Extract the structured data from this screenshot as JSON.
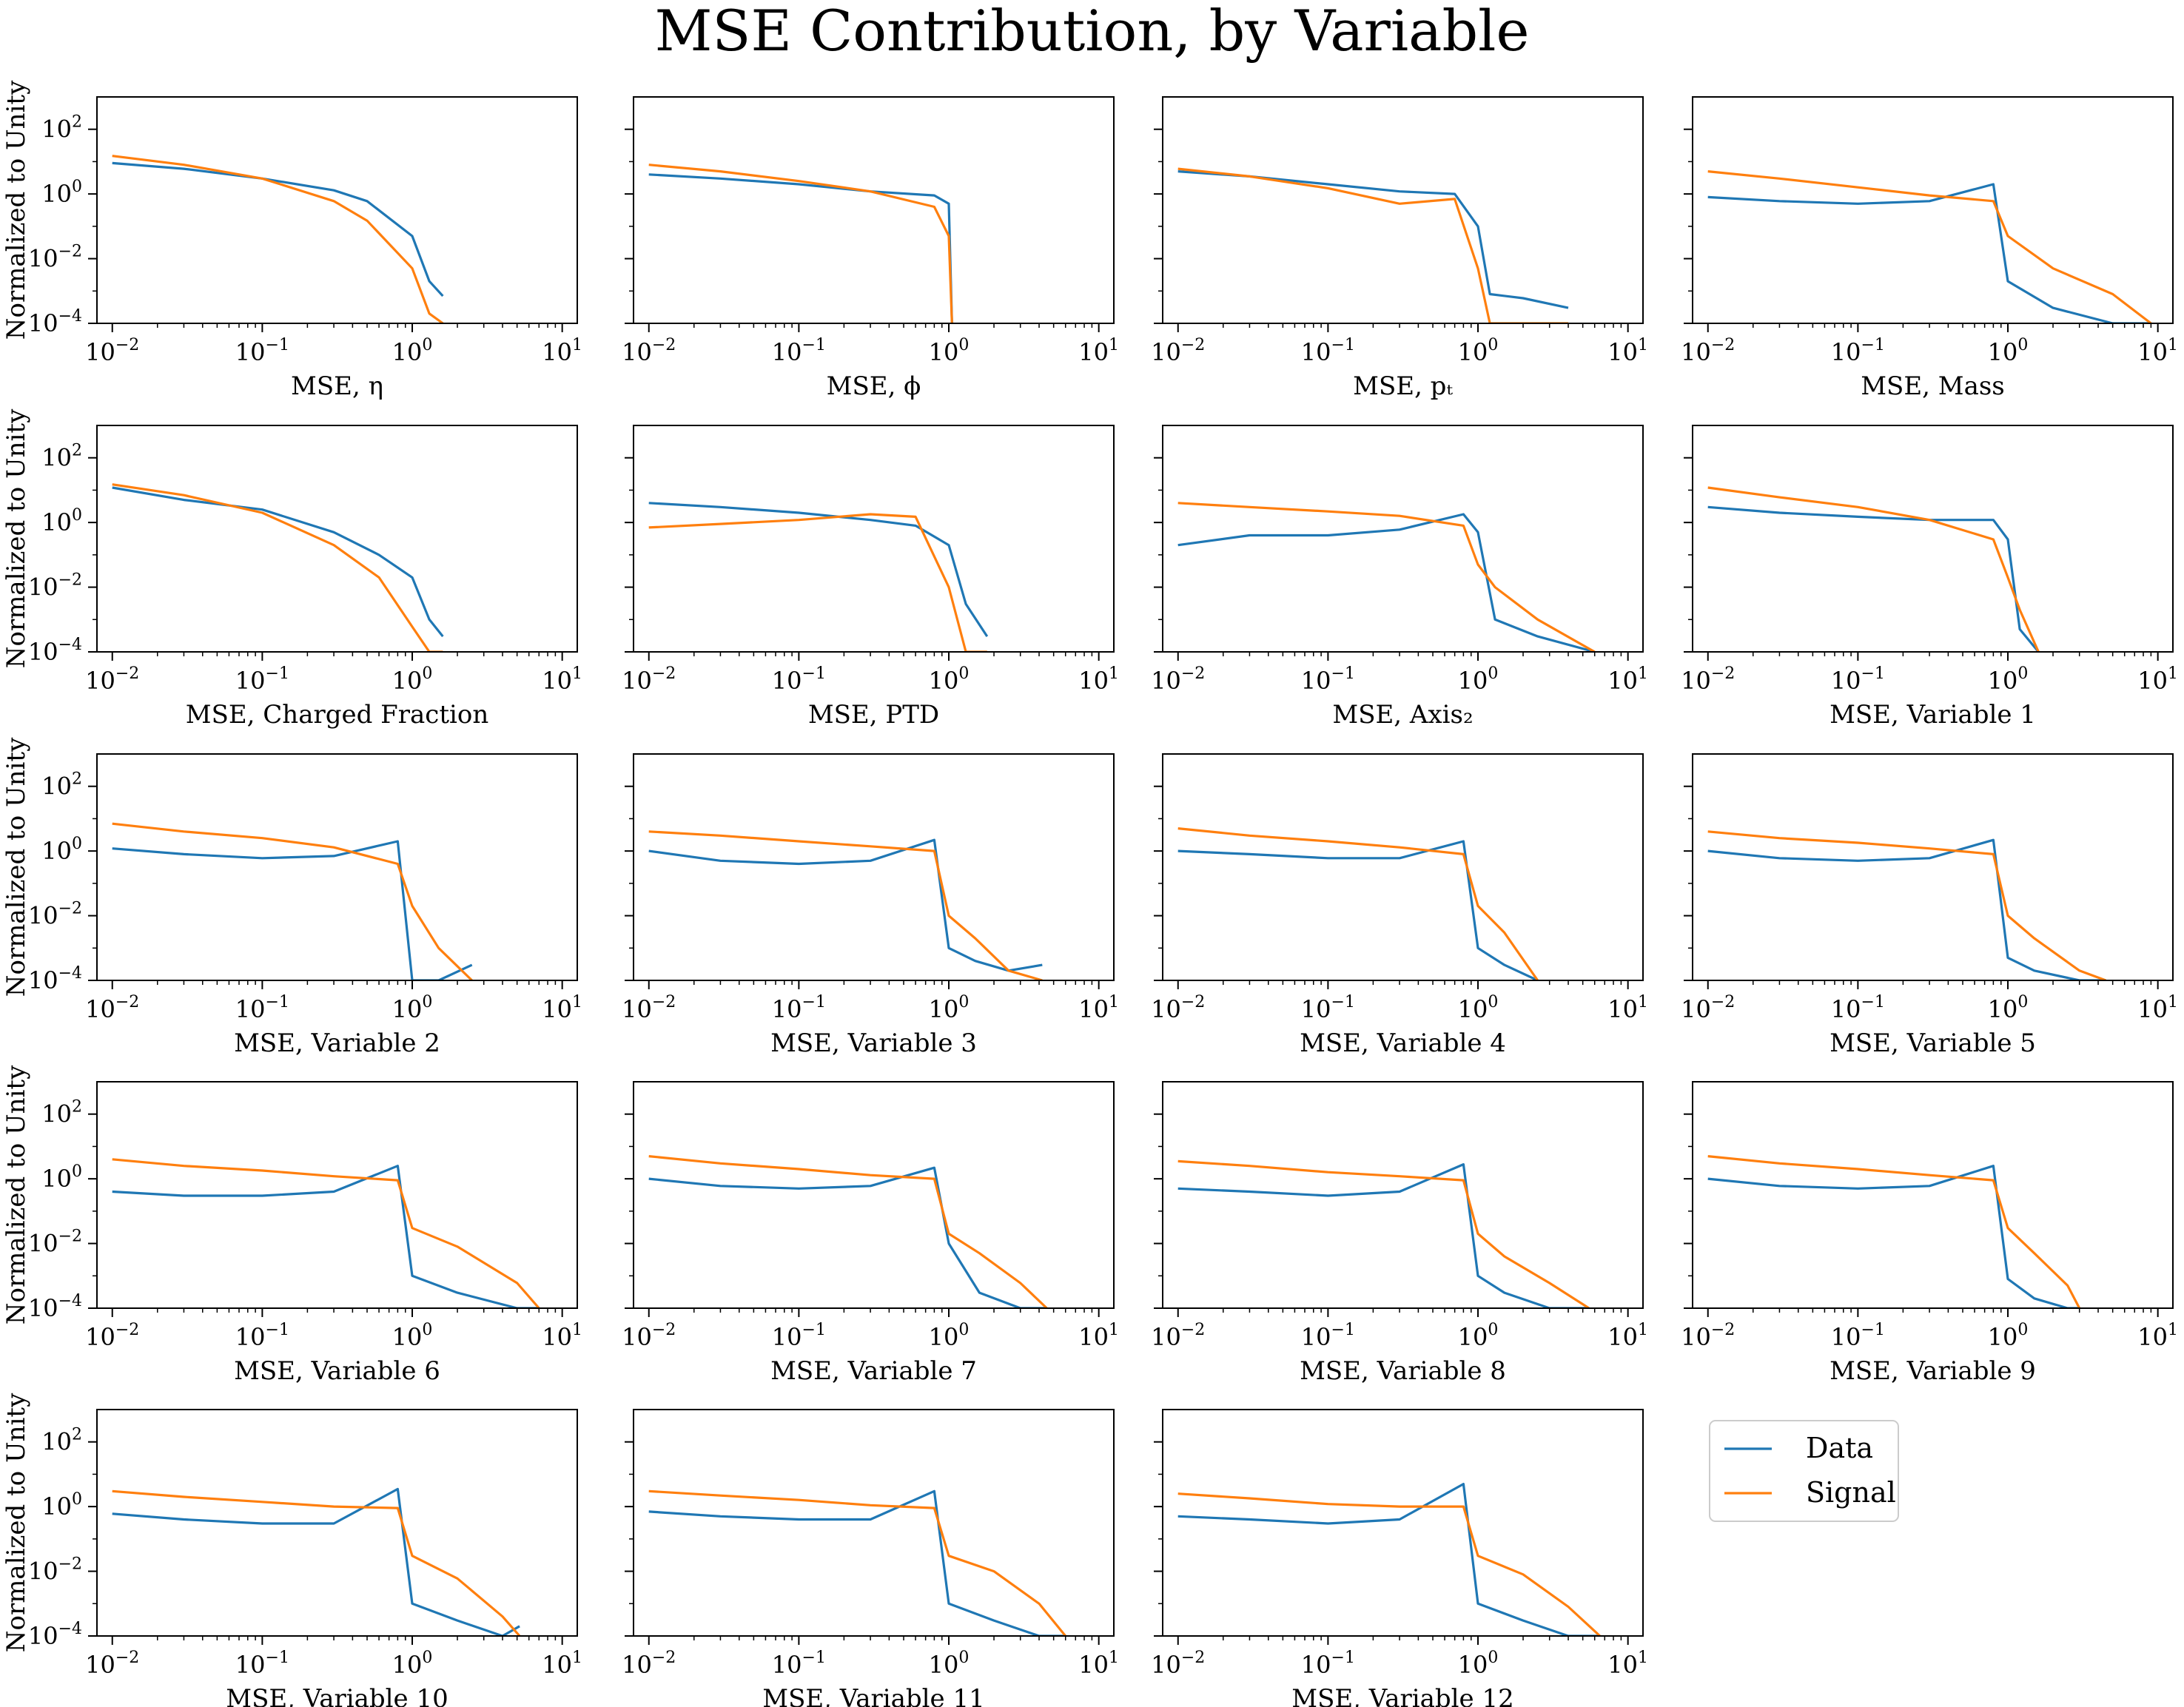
{
  "title": "MSE Contribution, by Variable",
  "legend": {
    "placement": "bottom-right",
    "entries": [
      {
        "label": "Data",
        "color": "#1f77b4"
      },
      {
        "label": "Signal",
        "color": "#ff7f0e"
      }
    ]
  },
  "chart_data": [
    {
      "type": "line",
      "xlabel": "MSE, η",
      "ylabel": "Normalized to Unity",
      "xscale": "log",
      "yscale": "log",
      "xlim": [
        0.0079,
        12.6
      ],
      "ylim": [
        0.0001,
        1000
      ],
      "grid": false,
      "x": [
        0.01,
        0.03,
        0.1,
        0.3,
        0.5,
        1.0,
        1.3,
        1.6
      ],
      "series": [
        {
          "name": "Data",
          "color": "#1f77b4",
          "values": [
            9,
            6,
            3,
            1.3,
            0.6,
            0.05,
            0.002,
            0.0007
          ]
        },
        {
          "name": "Signal",
          "color": "#ff7f0e",
          "values": [
            15,
            8,
            3,
            0.6,
            0.15,
            0.005,
            0.0002,
            0.0001
          ]
        }
      ]
    },
    {
      "type": "line",
      "xlabel": "MSE, ϕ",
      "ylabel": "",
      "xscale": "log",
      "yscale": "log",
      "xlim": [
        0.0079,
        12.6
      ],
      "ylim": [
        0.0001,
        1000
      ],
      "grid": false,
      "x": [
        0.01,
        0.03,
        0.1,
        0.3,
        0.8,
        1.0,
        1.05
      ],
      "series": [
        {
          "name": "Data",
          "color": "#1f77b4",
          "values": [
            4,
            3,
            2,
            1.2,
            0.9,
            0.5,
            0.0001
          ]
        },
        {
          "name": "Signal",
          "color": "#ff7f0e",
          "values": [
            8,
            5,
            2.5,
            1.2,
            0.4,
            0.05,
            0.0001
          ]
        }
      ]
    },
    {
      "type": "line",
      "xlabel": "MSE, pₜ",
      "ylabel": "",
      "xscale": "log",
      "yscale": "log",
      "xlim": [
        0.0079,
        12.6
      ],
      "ylim": [
        0.0001,
        1000
      ],
      "grid": false,
      "x": [
        0.01,
        0.03,
        0.1,
        0.3,
        0.7,
        1.0,
        1.2,
        2.0,
        4.0
      ],
      "series": [
        {
          "name": "Data",
          "color": "#1f77b4",
          "values": [
            5,
            3.5,
            2,
            1.2,
            1.0,
            0.1,
            0.0008,
            0.0006,
            0.0003
          ]
        },
        {
          "name": "Signal",
          "color": "#ff7f0e",
          "values": [
            6,
            3.5,
            1.5,
            0.5,
            0.7,
            0.005,
            0.0001,
            0.0001,
            0.0001
          ]
        }
      ]
    },
    {
      "type": "line",
      "xlabel": "MSE, Mass",
      "ylabel": "",
      "xscale": "log",
      "yscale": "log",
      "xlim": [
        0.0079,
        12.6
      ],
      "ylim": [
        0.0001,
        1000
      ],
      "grid": false,
      "x": [
        0.01,
        0.03,
        0.1,
        0.3,
        0.8,
        1.0,
        2.0,
        5.0,
        9.0
      ],
      "series": [
        {
          "name": "Data",
          "color": "#1f77b4",
          "values": [
            0.8,
            0.6,
            0.5,
            0.6,
            2,
            0.002,
            0.0003,
            0.0001,
            0.0001
          ]
        },
        {
          "name": "Signal",
          "color": "#ff7f0e",
          "values": [
            5,
            3,
            1.6,
            0.9,
            0.6,
            0.05,
            0.005,
            0.0008,
            0.0001
          ]
        }
      ]
    },
    {
      "type": "line",
      "xlabel": "MSE, Charged Fraction",
      "ylabel": "Normalized to Unity",
      "xscale": "log",
      "yscale": "log",
      "xlim": [
        0.0079,
        12.6
      ],
      "ylim": [
        0.0001,
        1000
      ],
      "grid": false,
      "x": [
        0.01,
        0.03,
        0.1,
        0.3,
        0.6,
        1.0,
        1.3,
        1.6
      ],
      "series": [
        {
          "name": "Data",
          "color": "#1f77b4",
          "values": [
            12,
            5,
            2.5,
            0.5,
            0.1,
            0.02,
            0.001,
            0.0003
          ]
        },
        {
          "name": "Signal",
          "color": "#ff7f0e",
          "values": [
            15,
            7,
            2,
            0.2,
            0.02,
            0.0006,
            0.0001,
            0.0001
          ]
        }
      ]
    },
    {
      "type": "line",
      "xlabel": "MSE, PTD",
      "ylabel": "",
      "xscale": "log",
      "yscale": "log",
      "xlim": [
        0.0079,
        12.6
      ],
      "ylim": [
        0.0001,
        1000
      ],
      "grid": false,
      "x": [
        0.01,
        0.03,
        0.1,
        0.3,
        0.6,
        1.0,
        1.3,
        1.8
      ],
      "series": [
        {
          "name": "Data",
          "color": "#1f77b4",
          "values": [
            4,
            3,
            2,
            1.2,
            0.8,
            0.2,
            0.003,
            0.0003
          ]
        },
        {
          "name": "Signal",
          "color": "#ff7f0e",
          "values": [
            0.7,
            0.9,
            1.2,
            1.8,
            1.5,
            0.01,
            0.0001,
            0.0001
          ]
        }
      ]
    },
    {
      "type": "line",
      "xlabel": "MSE, Axis₂",
      "ylabel": "",
      "xscale": "log",
      "yscale": "log",
      "xlim": [
        0.0079,
        12.6
      ],
      "ylim": [
        0.0001,
        1000
      ],
      "grid": false,
      "x": [
        0.01,
        0.03,
        0.1,
        0.3,
        0.8,
        1.0,
        1.3,
        2.5,
        6.0
      ],
      "series": [
        {
          "name": "Data",
          "color": "#1f77b4",
          "values": [
            0.2,
            0.4,
            0.4,
            0.6,
            1.8,
            0.5,
            0.001,
            0.0003,
            0.0001
          ]
        },
        {
          "name": "Signal",
          "color": "#ff7f0e",
          "values": [
            4,
            3,
            2.2,
            1.6,
            0.8,
            0.05,
            0.01,
            0.001,
            0.0001
          ]
        }
      ]
    },
    {
      "type": "line",
      "xlabel": "MSE, Variable 1",
      "ylabel": "",
      "xscale": "log",
      "yscale": "log",
      "xlim": [
        0.0079,
        12.6
      ],
      "ylim": [
        0.0001,
        1000
      ],
      "grid": false,
      "x": [
        0.01,
        0.03,
        0.1,
        0.3,
        0.8,
        1.0,
        1.2,
        1.6
      ],
      "series": [
        {
          "name": "Data",
          "color": "#1f77b4",
          "values": [
            3,
            2,
            1.5,
            1.2,
            1.2,
            0.3,
            0.0005,
            0.0001
          ]
        },
        {
          "name": "Signal",
          "color": "#ff7f0e",
          "values": [
            12,
            6,
            3,
            1.2,
            0.3,
            0.02,
            0.002,
            0.0001
          ]
        }
      ]
    },
    {
      "type": "line",
      "xlabel": "MSE, Variable 2",
      "ylabel": "Normalized to Unity",
      "xscale": "log",
      "yscale": "log",
      "xlim": [
        0.0079,
        12.6
      ],
      "ylim": [
        0.0001,
        1000
      ],
      "grid": false,
      "x": [
        0.01,
        0.03,
        0.1,
        0.3,
        0.8,
        1.0,
        1.5,
        2.5
      ],
      "series": [
        {
          "name": "Data",
          "color": "#1f77b4",
          "values": [
            1.2,
            0.8,
            0.6,
            0.7,
            2,
            0.0001,
            0.0001,
            0.0003
          ]
        },
        {
          "name": "Signal",
          "color": "#ff7f0e",
          "values": [
            7,
            4,
            2.5,
            1.3,
            0.4,
            0.02,
            0.001,
            0.0001
          ]
        }
      ]
    },
    {
      "type": "line",
      "xlabel": "MSE, Variable 3",
      "ylabel": "",
      "xscale": "log",
      "yscale": "log",
      "xlim": [
        0.0079,
        12.6
      ],
      "ylim": [
        0.0001,
        1000
      ],
      "grid": false,
      "x": [
        0.01,
        0.03,
        0.1,
        0.3,
        0.8,
        1.0,
        1.5,
        2.5,
        4.2
      ],
      "series": [
        {
          "name": "Data",
          "color": "#1f77b4",
          "values": [
            1.0,
            0.5,
            0.4,
            0.5,
            2.2,
            0.001,
            0.0004,
            0.0002,
            0.0003
          ]
        },
        {
          "name": "Signal",
          "color": "#ff7f0e",
          "values": [
            4,
            3,
            2,
            1.4,
            1.0,
            0.01,
            0.002,
            0.0002,
            0.0001
          ]
        }
      ]
    },
    {
      "type": "line",
      "xlabel": "MSE, Variable 4",
      "ylabel": "",
      "xscale": "log",
      "yscale": "log",
      "xlim": [
        0.0079,
        12.6
      ],
      "ylim": [
        0.0001,
        1000
      ],
      "grid": false,
      "x": [
        0.01,
        0.03,
        0.1,
        0.3,
        0.8,
        1.0,
        1.5,
        2.5
      ],
      "series": [
        {
          "name": "Data",
          "color": "#1f77b4",
          "values": [
            1.0,
            0.8,
            0.6,
            0.6,
            2.0,
            0.001,
            0.0003,
            0.0001
          ]
        },
        {
          "name": "Signal",
          "color": "#ff7f0e",
          "values": [
            5,
            3,
            2,
            1.3,
            0.8,
            0.02,
            0.003,
            0.0001
          ]
        }
      ]
    },
    {
      "type": "line",
      "xlabel": "MSE, Variable 5",
      "ylabel": "",
      "xscale": "log",
      "yscale": "log",
      "xlim": [
        0.0079,
        12.6
      ],
      "ylim": [
        0.0001,
        1000
      ],
      "grid": false,
      "x": [
        0.01,
        0.03,
        0.1,
        0.3,
        0.8,
        1.0,
        1.5,
        3.0,
        4.5
      ],
      "series": [
        {
          "name": "Data",
          "color": "#1f77b4",
          "values": [
            1.0,
            0.6,
            0.5,
            0.6,
            2.2,
            0.0005,
            0.0002,
            0.0001,
            0.0001
          ]
        },
        {
          "name": "Signal",
          "color": "#ff7f0e",
          "values": [
            4,
            2.5,
            1.8,
            1.2,
            0.8,
            0.01,
            0.002,
            0.0002,
            0.0001
          ]
        }
      ]
    },
    {
      "type": "line",
      "xlabel": "MSE, Variable 6",
      "ylabel": "Normalized to Unity",
      "xscale": "log",
      "yscale": "log",
      "xlim": [
        0.0079,
        12.6
      ],
      "ylim": [
        0.0001,
        1000
      ],
      "grid": false,
      "x": [
        0.01,
        0.03,
        0.1,
        0.3,
        0.8,
        1.0,
        2.0,
        5.0,
        7.0
      ],
      "series": [
        {
          "name": "Data",
          "color": "#1f77b4",
          "values": [
            0.4,
            0.3,
            0.3,
            0.4,
            2.5,
            0.001,
            0.0003,
            0.0001,
            0.0001
          ]
        },
        {
          "name": "Signal",
          "color": "#ff7f0e",
          "values": [
            4,
            2.5,
            1.8,
            1.2,
            0.9,
            0.03,
            0.008,
            0.0006,
            0.0001
          ]
        }
      ]
    },
    {
      "type": "line",
      "xlabel": "MSE, Variable 7",
      "ylabel": "",
      "xscale": "log",
      "yscale": "log",
      "xlim": [
        0.0079,
        12.6
      ],
      "ylim": [
        0.0001,
        1000
      ],
      "grid": false,
      "x": [
        0.01,
        0.03,
        0.1,
        0.3,
        0.8,
        1.0,
        1.6,
        3.0,
        4.5
      ],
      "series": [
        {
          "name": "Data",
          "color": "#1f77b4",
          "values": [
            1.0,
            0.6,
            0.5,
            0.6,
            2.2,
            0.01,
            0.0003,
            0.0001,
            0.0001
          ]
        },
        {
          "name": "Signal",
          "color": "#ff7f0e",
          "values": [
            5,
            3,
            2,
            1.3,
            1.0,
            0.02,
            0.005,
            0.0006,
            0.0001
          ]
        }
      ]
    },
    {
      "type": "line",
      "xlabel": "MSE, Variable 8",
      "ylabel": "",
      "xscale": "log",
      "yscale": "log",
      "xlim": [
        0.0079,
        12.6
      ],
      "ylim": [
        0.0001,
        1000
      ],
      "grid": false,
      "x": [
        0.01,
        0.03,
        0.1,
        0.3,
        0.8,
        1.0,
        1.5,
        3.0,
        5.5
      ],
      "series": [
        {
          "name": "Data",
          "color": "#1f77b4",
          "values": [
            0.5,
            0.4,
            0.3,
            0.4,
            2.8,
            0.001,
            0.0003,
            0.0001,
            0.0001
          ]
        },
        {
          "name": "Signal",
          "color": "#ff7f0e",
          "values": [
            3.5,
            2.5,
            1.6,
            1.2,
            0.9,
            0.02,
            0.004,
            0.0006,
            0.0001
          ]
        }
      ]
    },
    {
      "type": "line",
      "xlabel": "MSE, Variable 9",
      "ylabel": "",
      "xscale": "log",
      "yscale": "log",
      "xlim": [
        0.0079,
        12.6
      ],
      "ylim": [
        0.0001,
        1000
      ],
      "grid": false,
      "x": [
        0.01,
        0.03,
        0.1,
        0.3,
        0.8,
        1.0,
        1.5,
        2.5,
        3.0
      ],
      "series": [
        {
          "name": "Data",
          "color": "#1f77b4",
          "values": [
            1.0,
            0.6,
            0.5,
            0.6,
            2.5,
            0.0008,
            0.0002,
            0.0001,
            0.0001
          ]
        },
        {
          "name": "Signal",
          "color": "#ff7f0e",
          "values": [
            5,
            3,
            2,
            1.3,
            0.9,
            0.03,
            0.005,
            0.0005,
            0.0001
          ]
        }
      ]
    },
    {
      "type": "line",
      "xlabel": "MSE, Variable 10",
      "ylabel": "Normalized to Unity",
      "xscale": "log",
      "yscale": "log",
      "xlim": [
        0.0079,
        12.6
      ],
      "ylim": [
        0.0001,
        1000
      ],
      "grid": false,
      "x": [
        0.01,
        0.03,
        0.1,
        0.3,
        0.8,
        1.0,
        2.0,
        4.0,
        5.2
      ],
      "series": [
        {
          "name": "Data",
          "color": "#1f77b4",
          "values": [
            0.6,
            0.4,
            0.3,
            0.3,
            3.5,
            0.001,
            0.0003,
            0.0001,
            0.0002
          ]
        },
        {
          "name": "Signal",
          "color": "#ff7f0e",
          "values": [
            3,
            2,
            1.4,
            1.0,
            0.9,
            0.03,
            0.006,
            0.0004,
            0.0001
          ]
        }
      ]
    },
    {
      "type": "line",
      "xlabel": "MSE, Variable 11",
      "ylabel": "",
      "xscale": "log",
      "yscale": "log",
      "xlim": [
        0.0079,
        12.6
      ],
      "ylim": [
        0.0001,
        1000
      ],
      "grid": false,
      "x": [
        0.01,
        0.03,
        0.1,
        0.3,
        0.8,
        1.0,
        2.0,
        4.0,
        6.0
      ],
      "series": [
        {
          "name": "Data",
          "color": "#1f77b4",
          "values": [
            0.7,
            0.5,
            0.4,
            0.4,
            3.0,
            0.001,
            0.0003,
            0.0001,
            0.0001
          ]
        },
        {
          "name": "Signal",
          "color": "#ff7f0e",
          "values": [
            3,
            2.2,
            1.6,
            1.1,
            0.9,
            0.03,
            0.01,
            0.001,
            0.0001
          ]
        }
      ]
    },
    {
      "type": "line",
      "xlabel": "MSE, Variable 12",
      "ylabel": "",
      "xscale": "log",
      "yscale": "log",
      "xlim": [
        0.0079,
        12.6
      ],
      "ylim": [
        0.0001,
        1000
      ],
      "grid": false,
      "x": [
        0.01,
        0.03,
        0.1,
        0.3,
        0.8,
        1.0,
        2.0,
        4.0,
        6.5
      ],
      "series": [
        {
          "name": "Data",
          "color": "#1f77b4",
          "values": [
            0.5,
            0.4,
            0.3,
            0.4,
            5.0,
            0.001,
            0.0003,
            0.0001,
            0.0001
          ]
        },
        {
          "name": "Signal",
          "color": "#ff7f0e",
          "values": [
            2.5,
            1.8,
            1.2,
            1.0,
            1.0,
            0.03,
            0.008,
            0.0008,
            0.0001
          ]
        }
      ]
    }
  ]
}
